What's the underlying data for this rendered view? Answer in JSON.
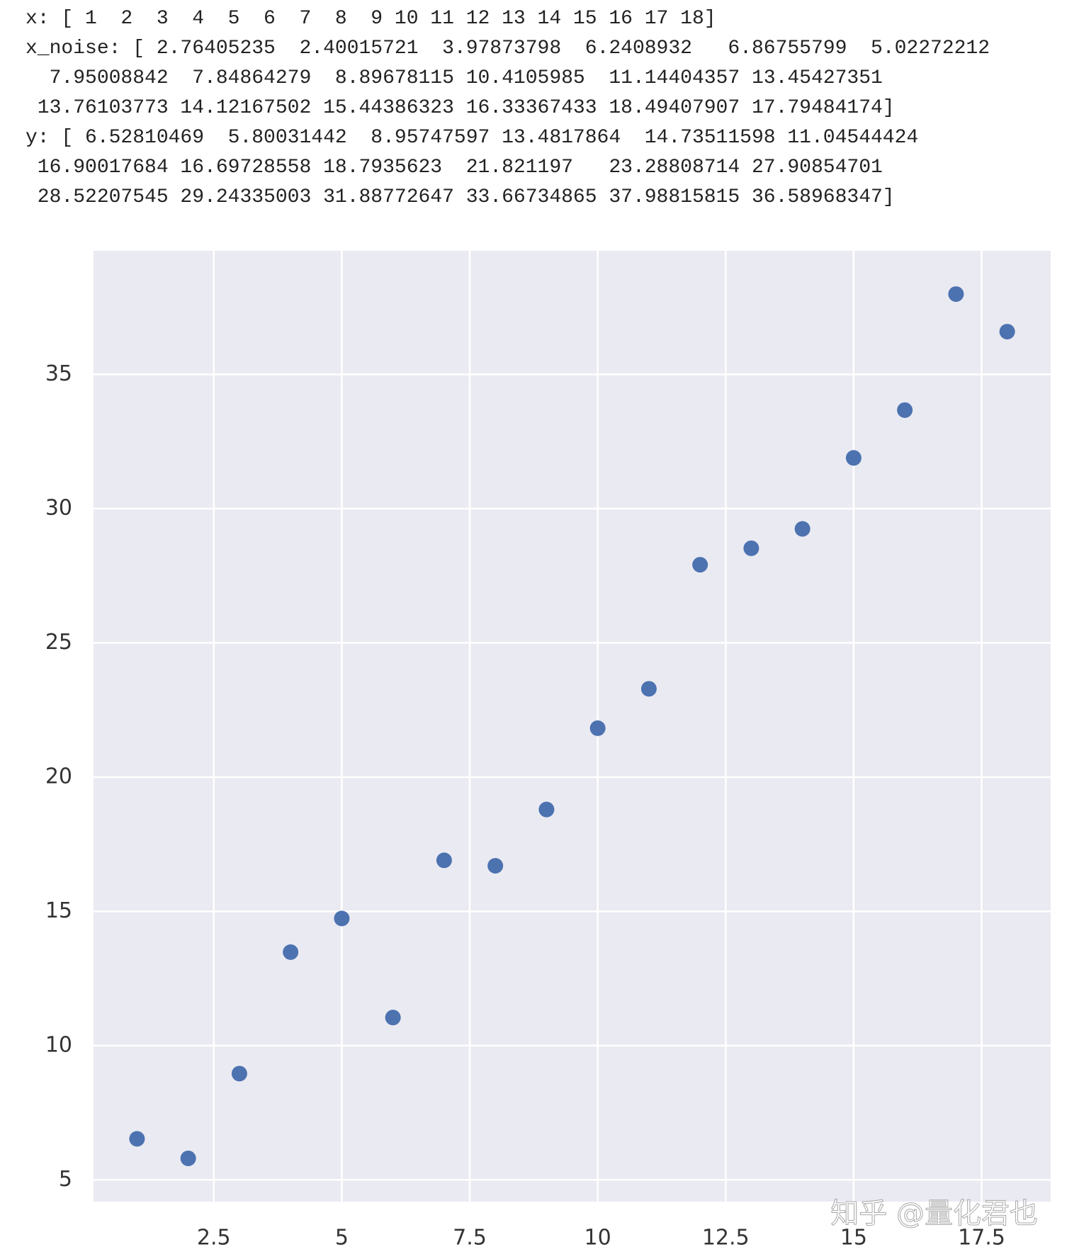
{
  "printed_output": [
    "x: [ 1  2  3  4  5  6  7  8  9 10 11 12 13 14 15 16 17 18]",
    "x_noise: [ 2.76405235  2.40015721  3.97873798  6.2408932   6.86755799  5.02272212",
    "  7.95008842  7.84864279  8.89678115 10.4105985  11.14404357 13.45427351",
    " 13.76103773 14.12167502 15.44386323 16.33367433 18.49407907 17.79484174]",
    "y: [ 6.52810469  5.80031442  8.95747597 13.4817864  14.73511598 11.04544424",
    " 16.90017684 16.69728558 18.7935623  21.821197   23.28808714 27.90854701",
    " 28.52207545 29.24335003 31.88772647 33.66734865 37.98815815 36.58968347]"
  ],
  "chart_data": {
    "type": "scatter",
    "x": [
      1,
      2,
      3,
      4,
      5,
      6,
      7,
      8,
      9,
      10,
      11,
      12,
      13,
      14,
      15,
      16,
      17,
      18
    ],
    "values": [
      6.52810469,
      5.80031442,
      8.95747597,
      13.4817864,
      14.73511598,
      11.04544424,
      16.90017684,
      16.69728558,
      18.7935623,
      21.821197,
      23.28808714,
      27.90854701,
      28.52207545,
      29.24335003,
      31.88772647,
      33.66734865,
      37.98815815,
      36.58968347
    ],
    "color": "#4c72b0",
    "xlim": [
      0.15,
      18.85
    ],
    "xticks": [
      2.5,
      5.0,
      7.5,
      10.0,
      12.5,
      15.0,
      17.5
    ],
    "ylim": [
      4.19,
      39.6
    ],
    "yticks": [
      5,
      10,
      15,
      20,
      25,
      30,
      35
    ],
    "grid": true
  },
  "watermark": "知乎 @量化君也"
}
